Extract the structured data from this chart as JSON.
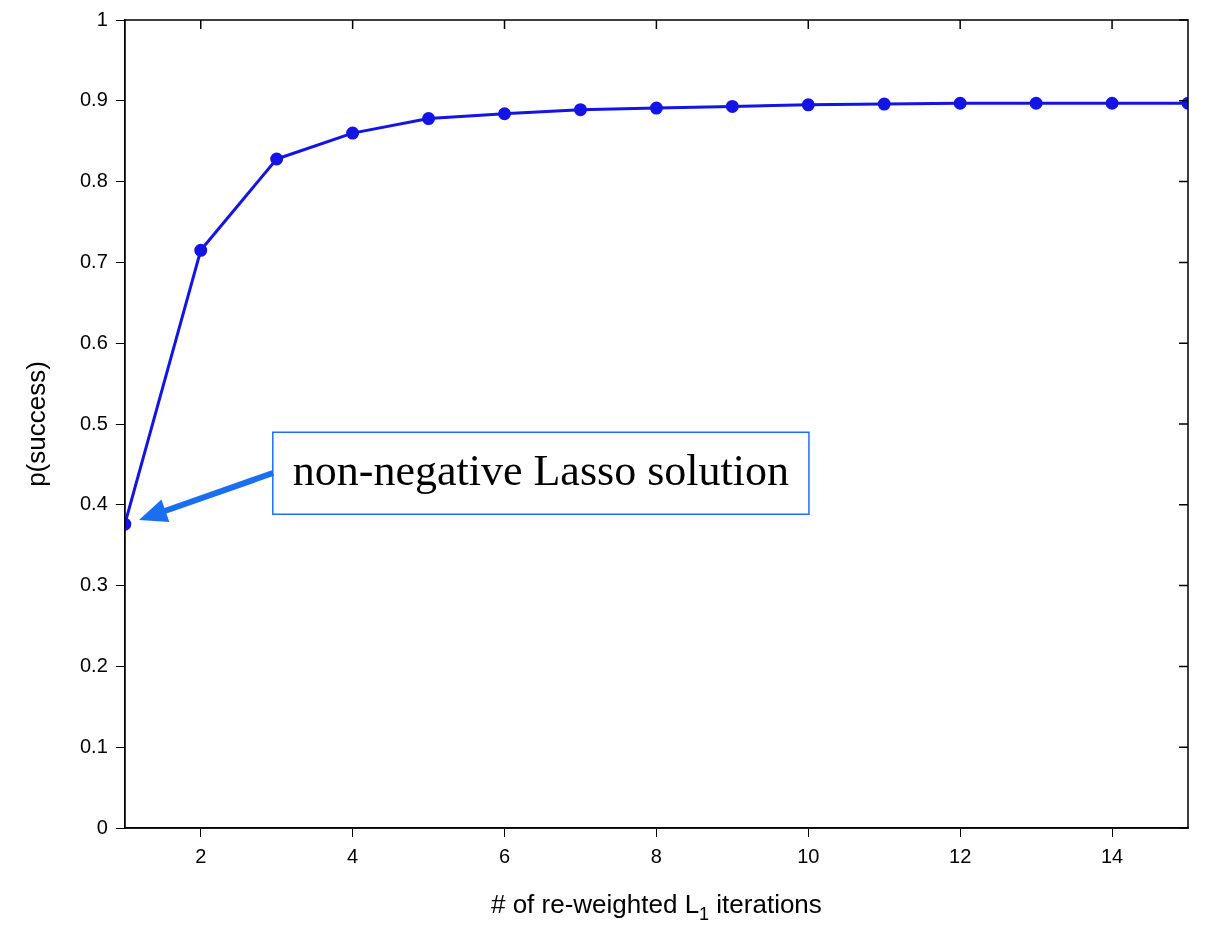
{
  "chart_data": {
    "type": "line",
    "xlabel": "# of re-weighted L$_{1}$ iterations",
    "ylabel": "p(success)",
    "x": [
      1,
      2,
      3,
      4,
      5,
      6,
      7,
      8,
      9,
      10,
      11,
      12,
      13,
      14,
      15
    ],
    "series": [
      {
        "color": "#1414e6",
        "values": [
          0.376,
          0.715,
          0.828,
          0.86,
          0.878,
          0.884,
          0.889,
          0.891,
          0.893,
          0.895,
          0.896,
          0.897,
          0.897,
          0.897,
          0.897
        ]
      }
    ],
    "xlim": [
      1,
      15
    ],
    "xticks": [
      2,
      4,
      6,
      8,
      10,
      12,
      14
    ],
    "ylim": [
      0,
      1
    ],
    "yticks": [
      0,
      0.1,
      0.2,
      0.3,
      0.4,
      0.5,
      0.6,
      0.7,
      0.8,
      0.9,
      1
    ],
    "grid": false,
    "legend": false,
    "marker": "circle",
    "line_style": "solid",
    "annotations": [
      "non-negative Lasso solution"
    ]
  }
}
